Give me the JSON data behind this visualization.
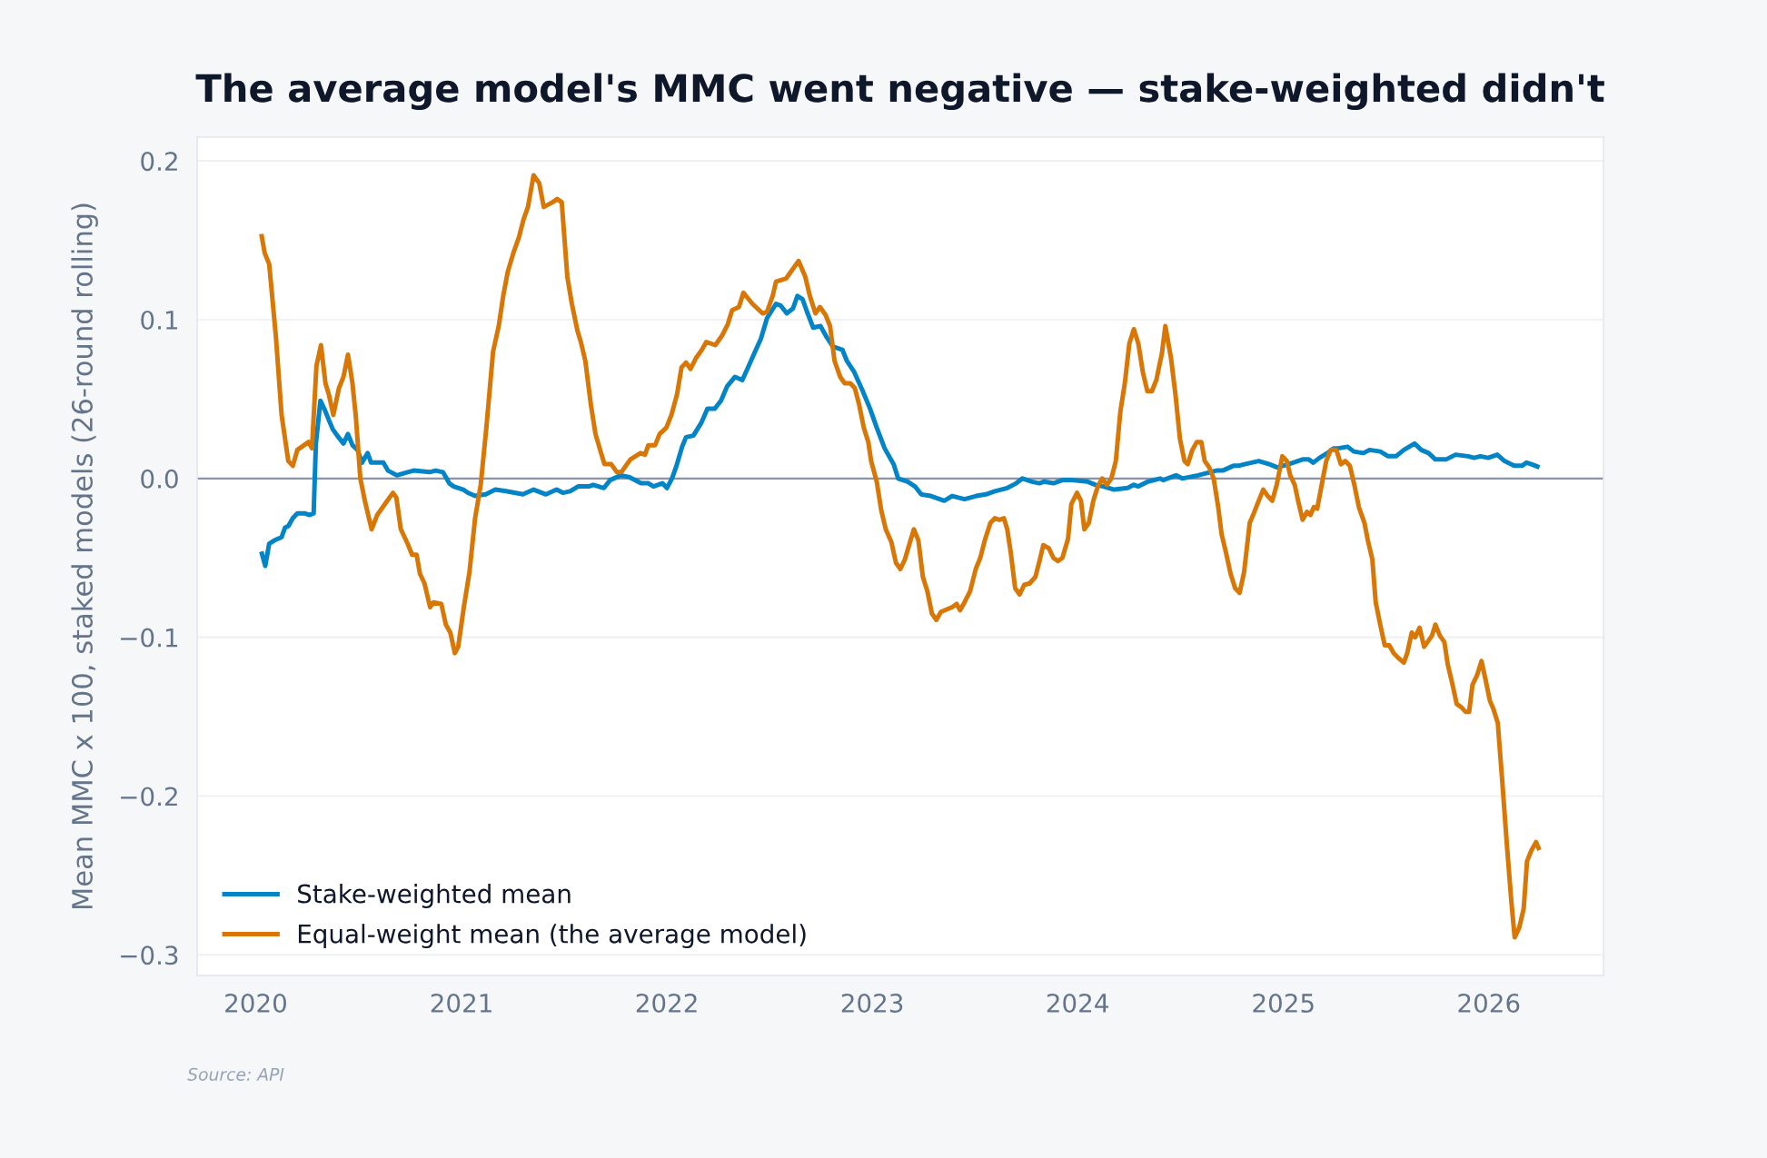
{
  "chart_data": {
    "type": "line",
    "title": "The average model's MMC went negative — stake-weighted didn't",
    "ylabel": "Mean MMC x 100, staked models (26-round rolling)",
    "annotations": [
      "Source: API"
    ],
    "series": [
      {
        "name": "Stake-weighted mean",
        "color": "#0284c7",
        "x": [
          "2020-01-11",
          "2020-01-18",
          "2020-01-25",
          "2020-02-03",
          "2020-02-16",
          "2020-02-22",
          "2020-02-28",
          "2020-03-07",
          "2020-03-15",
          "2020-03-29",
          "2020-04-06",
          "2020-04-13",
          "2020-04-17",
          "2020-04-25",
          "2020-05-03",
          "2020-05-11",
          "2020-05-17",
          "2020-05-25",
          "2020-06-05",
          "2020-06-13",
          "2020-06-21",
          "2020-06-30",
          "2020-07-08",
          "2020-07-18",
          "2020-07-24",
          "2020-08-15",
          "2020-08-23",
          "2020-09-08",
          "2020-09-27",
          "2020-10-08",
          "2020-11-05",
          "2020-11-16",
          "2020-11-29",
          "2020-12-10",
          "2020-12-18",
          "2021-01-04",
          "2021-01-12",
          "2021-01-25",
          "2021-02-13",
          "2021-03-02",
          "2021-03-21",
          "2021-04-20",
          "2021-05-09",
          "2021-05-31",
          "2021-06-19",
          "2021-06-30",
          "2021-07-13",
          "2021-07-27",
          "2021-08-15",
          "2021-08-23",
          "2021-09-11",
          "2021-09-22",
          "2021-10-11",
          "2021-10-25",
          "2021-11-16",
          "2021-11-29",
          "2021-12-08",
          "2021-12-24",
          "2022-01-01",
          "2022-01-10",
          "2022-01-18",
          "2022-01-28",
          "2022-02-04",
          "2022-02-17",
          "2022-03-03",
          "2022-03-14",
          "2022-03-27",
          "2022-04-07",
          "2022-04-18",
          "2022-05-02",
          "2022-05-15",
          "2022-05-24",
          "2022-06-03",
          "2022-06-17",
          "2022-06-28",
          "2022-07-14",
          "2022-07-22",
          "2022-08-02",
          "2022-08-13",
          "2022-08-21",
          "2022-08-30",
          "2022-09-07",
          "2022-09-18",
          "2022-10-01",
          "2022-10-12",
          "2022-10-23",
          "2022-11-09",
          "2022-11-17",
          "2022-11-30",
          "2022-12-14",
          "2022-12-28",
          "2023-01-09",
          "2023-01-23",
          "2023-02-08",
          "2023-02-16",
          "2023-03-05",
          "2023-03-18",
          "2023-03-29",
          "2023-04-15",
          "2023-05-09",
          "2023-05-23",
          "2023-06-14",
          "2023-07-05",
          "2023-07-22",
          "2023-08-07",
          "2023-08-29",
          "2023-09-14",
          "2023-09-25",
          "2023-10-12",
          "2023-10-25",
          "2023-11-02",
          "2023-11-19",
          "2023-12-05",
          "2023-12-21",
          "2024-01-19",
          "2024-02-02",
          "2024-02-16",
          "2024-03-06",
          "2024-03-30",
          "2024-04-10",
          "2024-04-18",
          "2024-05-05",
          "2024-05-27",
          "2024-06-01",
          "2024-06-24",
          "2024-07-05",
          "2024-08-02",
          "2024-08-13",
          "2024-09-04",
          "2024-09-15",
          "2024-10-04",
          "2024-10-13",
          "2024-10-24",
          "2024-11-18",
          "2024-12-07",
          "2024-12-21",
          "2025-01-10",
          "2025-02-04",
          "2025-02-15",
          "2025-02-23",
          "2025-03-06",
          "2025-03-20",
          "2025-03-31",
          "2025-04-08",
          "2025-04-25",
          "2025-05-06",
          "2025-05-23",
          "2025-06-03",
          "2025-06-22",
          "2025-07-06",
          "2025-07-20",
          "2025-08-03",
          "2025-08-22",
          "2025-09-03",
          "2025-09-16",
          "2025-09-28",
          "2025-10-17",
          "2025-11-03",
          "2025-11-25",
          "2025-12-06",
          "2025-12-17",
          "2025-12-31",
          "2026-01-16",
          "2026-01-29",
          "2026-02-15",
          "2026-03-01",
          "2026-03-09",
          "2026-03-18",
          "2026-04-01"
        ],
        "values": [
          -0.046,
          -0.055,
          -0.041,
          -0.039,
          -0.037,
          -0.031,
          -0.03,
          -0.025,
          -0.022,
          -0.022,
          -0.023,
          -0.022,
          0.022,
          0.049,
          0.043,
          0.036,
          0.031,
          0.027,
          0.022,
          0.028,
          0.021,
          0.018,
          0.01,
          0.016,
          0.01,
          0.01,
          0.005,
          0.002,
          0.004,
          0.005,
          0.004,
          0.005,
          0.004,
          -0.003,
          -0.005,
          -0.007,
          -0.009,
          -0.011,
          -0.01,
          -0.007,
          -0.008,
          -0.01,
          -0.007,
          -0.01,
          -0.007,
          -0.009,
          -0.008,
          -0.005,
          -0.005,
          -0.004,
          -0.006,
          -0.001,
          0.002,
          0.001,
          -0.003,
          -0.003,
          -0.005,
          -0.003,
          -0.006,
          0.0,
          0.008,
          0.02,
          0.026,
          0.027,
          0.035,
          0.044,
          0.044,
          0.049,
          0.058,
          0.064,
          0.062,
          0.069,
          0.077,
          0.088,
          0.101,
          0.11,
          0.109,
          0.104,
          0.107,
          0.115,
          0.113,
          0.105,
          0.095,
          0.096,
          0.089,
          0.083,
          0.081,
          0.074,
          0.067,
          0.056,
          0.044,
          0.032,
          0.019,
          0.009,
          0.0,
          -0.002,
          -0.005,
          -0.01,
          -0.011,
          -0.014,
          -0.011,
          -0.013,
          -0.011,
          -0.01,
          -0.008,
          -0.006,
          -0.003,
          0.0,
          -0.002,
          -0.003,
          -0.002,
          -0.003,
          -0.001,
          -0.001,
          -0.002,
          -0.004,
          -0.005,
          -0.007,
          -0.006,
          -0.004,
          -0.005,
          -0.002,
          0.0,
          -0.001,
          0.002,
          0.0,
          0.002,
          0.003,
          0.005,
          0.005,
          0.008,
          0.008,
          0.009,
          0.011,
          0.009,
          0.007,
          0.009,
          0.012,
          0.012,
          0.01,
          0.013,
          0.016,
          0.019,
          0.019,
          0.02,
          0.017,
          0.016,
          0.018,
          0.017,
          0.014,
          0.014,
          0.018,
          0.022,
          0.018,
          0.016,
          0.012,
          0.012,
          0.015,
          0.014,
          0.013,
          0.014,
          0.013,
          0.015,
          0.011,
          0.008,
          0.008,
          0.01,
          0.009,
          0.007
        ]
      },
      {
        "name": "Equal-weight mean (the average model)",
        "color": "#d97706",
        "x": [
          "2020-01-11",
          "2020-01-17",
          "2020-01-25",
          "2020-02-06",
          "2020-02-16",
          "2020-02-28",
          "2020-03-07",
          "2020-03-15",
          "2020-04-04",
          "2020-04-10",
          "2020-04-18",
          "2020-04-26",
          "2020-05-04",
          "2020-05-10",
          "2020-05-18",
          "2020-05-28",
          "2020-06-05",
          "2020-06-13",
          "2020-06-21",
          "2020-06-27",
          "2020-07-05",
          "2020-07-13",
          "2020-07-25",
          "2020-08-04",
          "2020-08-18",
          "2020-09-01",
          "2020-09-07",
          "2020-09-15",
          "2020-09-27",
          "2020-10-05",
          "2020-10-13",
          "2020-10-19",
          "2020-10-27",
          "2020-11-06",
          "2020-11-12",
          "2020-11-26",
          "2020-12-04",
          "2020-12-12",
          "2020-12-20",
          "2020-12-26",
          "2021-01-05",
          "2021-01-15",
          "2021-01-25",
          "2021-02-04",
          "2021-02-14",
          "2021-02-26",
          "2021-03-08",
          "2021-03-16",
          "2021-03-24",
          "2021-04-03",
          "2021-04-13",
          "2021-04-21",
          "2021-04-29",
          "2021-05-09",
          "2021-05-19",
          "2021-05-27",
          "2021-06-12",
          "2021-06-20",
          "2021-06-28",
          "2021-07-08",
          "2021-07-16",
          "2021-07-26",
          "2021-08-01",
          "2021-08-09",
          "2021-08-19",
          "2021-08-27",
          "2021-09-06",
          "2021-09-12",
          "2021-09-24",
          "2021-10-04",
          "2021-10-12",
          "2021-10-28",
          "2021-11-15",
          "2021-11-23",
          "2021-11-29",
          "2021-12-11",
          "2021-12-19",
          "2021-12-31",
          "2022-01-09",
          "2022-01-19",
          "2022-01-27",
          "2022-02-04",
          "2022-02-12",
          "2022-02-22",
          "2022-03-04",
          "2022-03-12",
          "2022-03-28",
          "2022-04-09",
          "2022-04-19",
          "2022-04-27",
          "2022-05-09",
          "2022-05-17",
          "2022-06-02",
          "2022-06-20",
          "2022-06-28",
          "2022-07-08",
          "2022-07-14",
          "2022-08-01",
          "2022-08-11",
          "2022-08-23",
          "2022-09-04",
          "2022-09-12",
          "2022-09-22",
          "2022-09-30",
          "2022-10-10",
          "2022-10-18",
          "2022-10-26",
          "2022-11-05",
          "2022-11-13",
          "2022-11-23",
          "2022-12-01",
          "2022-12-09",
          "2022-12-17",
          "2022-12-25",
          "2022-12-30",
          "2023-01-09",
          "2023-01-17",
          "2023-01-25",
          "2023-02-04",
          "2023-02-12",
          "2023-02-20",
          "2023-02-28",
          "2023-03-10",
          "2023-03-16",
          "2023-03-24",
          "2023-04-01",
          "2023-04-09",
          "2023-04-17",
          "2023-04-25",
          "2023-05-03",
          "2023-05-23",
          "2023-05-31",
          "2023-06-06",
          "2023-06-14",
          "2023-06-24",
          "2023-07-04",
          "2023-07-12",
          "2023-07-20",
          "2023-07-30",
          "2023-08-07",
          "2023-08-15",
          "2023-08-23",
          "2023-08-29",
          "2023-09-04",
          "2023-09-12",
          "2023-09-20",
          "2023-09-28",
          "2023-10-08",
          "2023-10-18",
          "2023-10-26",
          "2023-11-01",
          "2023-11-11",
          "2023-11-19",
          "2023-11-27",
          "2023-12-05",
          "2023-12-15",
          "2023-12-21",
          "2023-12-31",
          "2024-01-07",
          "2024-01-13",
          "2024-01-21",
          "2024-01-29",
          "2024-02-06",
          "2024-02-14",
          "2024-02-22",
          "2024-03-01",
          "2024-03-09",
          "2024-03-17",
          "2024-03-25",
          "2024-04-02",
          "2024-04-10",
          "2024-04-18",
          "2024-04-26",
          "2024-05-04",
          "2024-05-12",
          "2024-05-20",
          "2024-05-30",
          "2024-06-05",
          "2024-06-15",
          "2024-06-23",
          "2024-07-01",
          "2024-07-09",
          "2024-07-15",
          "2024-07-23",
          "2024-07-31",
          "2024-08-08",
          "2024-08-14",
          "2024-08-22",
          "2024-08-30",
          "2024-09-07",
          "2024-09-13",
          "2024-09-21",
          "2024-09-29",
          "2024-10-07",
          "2024-10-15",
          "2024-10-23",
          "2024-11-02",
          "2024-11-08",
          "2024-11-18",
          "2024-11-26",
          "2024-12-04",
          "2024-12-12",
          "2024-12-20",
          "2024-12-30",
          "2025-01-07",
          "2025-01-13",
          "2025-01-21",
          "2025-01-27",
          "2025-02-04",
          "2025-02-12",
          "2025-02-18",
          "2025-02-24",
          "2025-03-02",
          "2025-03-10",
          "2025-03-18",
          "2025-03-26",
          "2025-04-05",
          "2025-04-13",
          "2025-04-21",
          "2025-04-29",
          "2025-05-07",
          "2025-05-15",
          "2025-05-25",
          "2025-05-31",
          "2025-06-08",
          "2025-06-14",
          "2025-06-22",
          "2025-06-30",
          "2025-07-08",
          "2025-07-16",
          "2025-07-24",
          "2025-08-03",
          "2025-08-09",
          "2025-08-17",
          "2025-08-23",
          "2025-08-31",
          "2025-09-08",
          "2025-09-14",
          "2025-09-22",
          "2025-09-28",
          "2025-10-06",
          "2025-10-14",
          "2025-10-20",
          "2025-10-28",
          "2025-11-05",
          "2025-11-13",
          "2025-11-21",
          "2025-11-27",
          "2025-12-03",
          "2025-12-11",
          "2025-12-19",
          "2025-12-27",
          "2026-01-03",
          "2026-01-09",
          "2026-01-17",
          "2026-01-25",
          "2026-02-02",
          "2026-02-10",
          "2026-02-16",
          "2026-02-24",
          "2026-03-04",
          "2026-03-10",
          "2026-03-18",
          "2026-03-26",
          "2026-04-01"
        ],
        "values": [
          0.154,
          0.142,
          0.135,
          0.089,
          0.04,
          0.011,
          0.008,
          0.018,
          0.023,
          0.019,
          0.071,
          0.084,
          0.06,
          0.053,
          0.04,
          0.057,
          0.064,
          0.078,
          0.06,
          0.039,
          0.0,
          -0.014,
          -0.032,
          -0.023,
          -0.016,
          -0.009,
          -0.012,
          -0.032,
          -0.041,
          -0.048,
          -0.048,
          -0.06,
          -0.066,
          -0.081,
          -0.078,
          -0.079,
          -0.092,
          -0.097,
          -0.11,
          -0.106,
          -0.081,
          -0.059,
          -0.025,
          -0.004,
          0.032,
          0.08,
          0.096,
          0.115,
          0.13,
          0.142,
          0.152,
          0.163,
          0.171,
          0.191,
          0.186,
          0.171,
          0.174,
          0.176,
          0.174,
          0.127,
          0.11,
          0.093,
          0.086,
          0.074,
          0.046,
          0.028,
          0.016,
          0.009,
          0.009,
          0.004,
          0.004,
          0.012,
          0.016,
          0.015,
          0.021,
          0.021,
          0.028,
          0.032,
          0.04,
          0.053,
          0.07,
          0.073,
          0.069,
          0.076,
          0.081,
          0.086,
          0.084,
          0.09,
          0.097,
          0.106,
          0.108,
          0.117,
          0.11,
          0.104,
          0.105,
          0.115,
          0.124,
          0.126,
          0.131,
          0.137,
          0.127,
          0.115,
          0.104,
          0.108,
          0.103,
          0.096,
          0.074,
          0.064,
          0.06,
          0.06,
          0.057,
          0.046,
          0.032,
          0.023,
          0.011,
          -0.002,
          -0.02,
          -0.032,
          -0.04,
          -0.053,
          -0.057,
          -0.051,
          -0.039,
          -0.032,
          -0.039,
          -0.062,
          -0.071,
          -0.085,
          -0.089,
          -0.084,
          -0.081,
          -0.079,
          -0.083,
          -0.078,
          -0.071,
          -0.057,
          -0.05,
          -0.039,
          -0.028,
          -0.025,
          -0.026,
          -0.025,
          -0.032,
          -0.046,
          -0.069,
          -0.073,
          -0.067,
          -0.066,
          -0.062,
          -0.051,
          -0.042,
          -0.044,
          -0.05,
          -0.052,
          -0.05,
          -0.038,
          -0.016,
          -0.009,
          -0.014,
          -0.032,
          -0.028,
          -0.014,
          -0.005,
          0.0,
          -0.004,
          0.0,
          0.011,
          0.042,
          0.06,
          0.085,
          0.094,
          0.085,
          0.067,
          0.055,
          0.055,
          0.062,
          0.079,
          0.096,
          0.076,
          0.053,
          0.025,
          0.011,
          0.009,
          0.018,
          0.023,
          0.023,
          0.011,
          0.007,
          0.0,
          -0.018,
          -0.035,
          -0.047,
          -0.06,
          -0.069,
          -0.072,
          -0.059,
          -0.028,
          -0.023,
          -0.014,
          -0.007,
          -0.011,
          -0.014,
          -0.004,
          0.014,
          0.011,
          0.002,
          -0.004,
          -0.014,
          -0.026,
          -0.021,
          -0.023,
          -0.018,
          -0.019,
          -0.004,
          0.011,
          0.018,
          0.018,
          0.009,
          0.011,
          0.008,
          -0.004,
          -0.018,
          -0.028,
          -0.039,
          -0.051,
          -0.078,
          -0.092,
          -0.105,
          -0.105,
          -0.11,
          -0.113,
          -0.116,
          -0.11,
          -0.097,
          -0.1,
          -0.094,
          -0.106,
          -0.103,
          -0.099,
          -0.092,
          -0.099,
          -0.103,
          -0.117,
          -0.129,
          -0.142,
          -0.144,
          -0.147,
          -0.147,
          -0.13,
          -0.124,
          -0.115,
          -0.128,
          -0.14,
          -0.145,
          -0.154,
          -0.191,
          -0.23,
          -0.266,
          -0.289,
          -0.283,
          -0.271,
          -0.241,
          -0.234,
          -0.229,
          -0.234
        ]
      }
    ],
    "xlim": [
      "2019-09-19",
      "2026-07-24"
    ],
    "xticks": [
      {
        "value": "2020-01-01",
        "label": "2020"
      },
      {
        "value": "2021-01-01",
        "label": "2021"
      },
      {
        "value": "2022-01-01",
        "label": "2022"
      },
      {
        "value": "2023-01-01",
        "label": "2023"
      },
      {
        "value": "2024-01-01",
        "label": "2024"
      },
      {
        "value": "2025-01-01",
        "label": "2025"
      },
      {
        "value": "2026-01-01",
        "label": "2026"
      }
    ],
    "ylim": [
      -0.313,
      0.215
    ],
    "yticks": [
      {
        "value": -0.3,
        "label": "−0.3"
      },
      {
        "value": -0.2,
        "label": "−0.2"
      },
      {
        "value": -0.1,
        "label": "−0.1"
      },
      {
        "value": 0,
        "label": "0.0"
      },
      {
        "value": 0.1,
        "label": "0.1"
      },
      {
        "value": 0.2,
        "label": "0.2"
      }
    ],
    "ref_lines": [
      {
        "axis": "y",
        "value": 0,
        "color": "#8a94a6"
      }
    ],
    "grid": "y",
    "legend": "bottom left",
    "line_style": "solid"
  }
}
